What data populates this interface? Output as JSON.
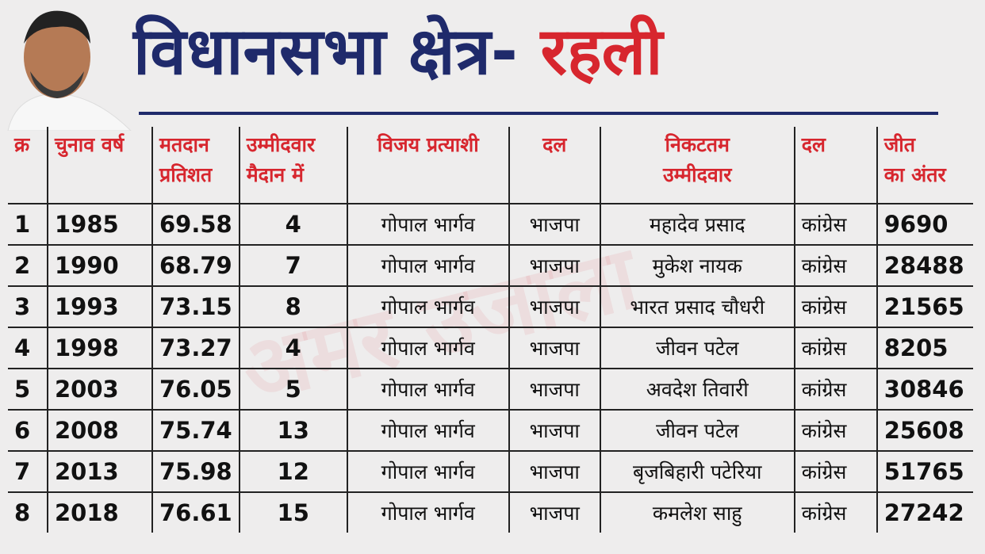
{
  "header": {
    "title_main": "विधानसभा क्षेत्र-",
    "title_highlight": "रहली",
    "watermark": "अमर उजाला"
  },
  "table": {
    "columns": [
      [
        "क्र"
      ],
      [
        "चुनाव वर्ष"
      ],
      [
        "मतदान",
        "प्रतिशत"
      ],
      [
        "उम्मीदवार",
        "मैदान में"
      ],
      [
        "विजय प्रत्याशी"
      ],
      [
        "दल"
      ],
      [
        "निकटतम",
        "उम्मीदवार"
      ],
      [
        "दल"
      ],
      [
        "जीत",
        "का अंतर"
      ]
    ],
    "rows": [
      [
        "1",
        "1985",
        "69.58",
        "4",
        "गोपाल भार्गव",
        "भाजपा",
        "महादेव प्रसाद",
        "कांग्रेस",
        "9690"
      ],
      [
        "2",
        "1990",
        "68.79",
        "7",
        "गोपाल भार्गव",
        "भाजपा",
        "मुकेश नायक",
        "कांग्रेस",
        "28488"
      ],
      [
        "3",
        "1993",
        "73.15",
        "8",
        "गोपाल भार्गव",
        "भाजपा",
        "भारत प्रसाद चौधरी",
        "कांग्रेस",
        "21565"
      ],
      [
        "4",
        "1998",
        "73.27",
        "4",
        "गोपाल भार्गव",
        "भाजपा",
        "जीवन पटेल",
        "कांग्रेस",
        "8205"
      ],
      [
        "5",
        "2003",
        "76.05",
        "5",
        "गोपाल भार्गव",
        "भाजपा",
        "अवदेश तिवारी",
        "कांग्रेस",
        "30846"
      ],
      [
        "6",
        "2008",
        "75.74",
        "13",
        "गोपाल भार्गव",
        "भाजपा",
        "जीवन पटेल",
        "कांग्रेस",
        "25608"
      ],
      [
        "7",
        "2013",
        "75.98",
        "12",
        "गोपाल भार्गव",
        "भाजपा",
        "बृजबिहारी पटेरिया",
        "कांग्रेस",
        "51765"
      ],
      [
        "8",
        "2018",
        "76.61",
        "15",
        "गोपाल भार्गव",
        "भाजपा",
        "कमलेश साहु",
        "कांग्रेस",
        "27242"
      ]
    ]
  }
}
